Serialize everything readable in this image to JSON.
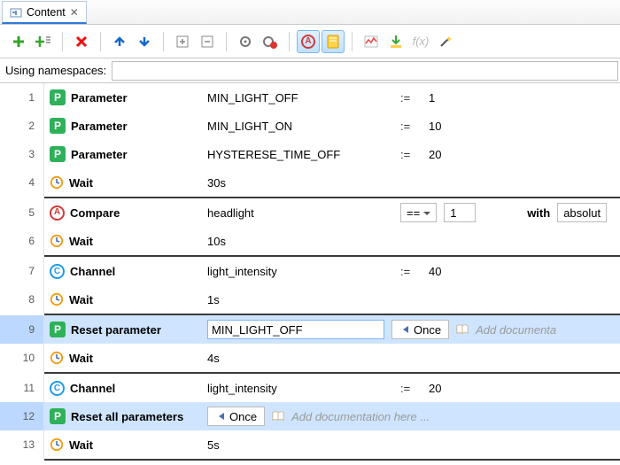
{
  "tab": {
    "title": "Content"
  },
  "namespaces": {
    "label": "Using namespaces:",
    "value": ""
  },
  "toolbar_icons": [
    "add",
    "add-sequence",
    "delete",
    "move-up",
    "move-down",
    "insert",
    "remove",
    "gear",
    "gear-red",
    "compare-a",
    "notebook",
    "analyze",
    "download",
    "fx",
    "wizard"
  ],
  "rows": [
    {
      "n": 1,
      "icon": "P",
      "cmd": "Parameter",
      "p1": "MIN_LIGHT_OFF",
      "assign": ":=",
      "val": "1"
    },
    {
      "n": 2,
      "icon": "P",
      "cmd": "Parameter",
      "p1": "MIN_LIGHT_ON",
      "assign": ":=",
      "val": "10"
    },
    {
      "n": 3,
      "icon": "P",
      "cmd": "Parameter",
      "p1": "HYSTERESE_TIME_OFF",
      "assign": ":=",
      "val": "20"
    },
    {
      "n": 4,
      "icon": "clock",
      "cmd": "Wait",
      "p1": "30s",
      "sep": true
    },
    {
      "n": 5,
      "icon": "A",
      "cmd": "Compare",
      "p1": "headlight",
      "op": "==",
      "val": "1",
      "with": "with",
      "with_val": "absolut"
    },
    {
      "n": 6,
      "icon": "clock",
      "cmd": "Wait",
      "p1": "10s",
      "sep": true
    },
    {
      "n": 7,
      "icon": "C",
      "cmd": "Channel",
      "p1": "light_intensity",
      "assign": ":=",
      "val": "40"
    },
    {
      "n": 8,
      "icon": "clock",
      "cmd": "Wait",
      "p1": "1s",
      "sep": true
    },
    {
      "n": 9,
      "icon": "P",
      "cmd": "Reset parameter",
      "p1": "MIN_LIGHT_OFF",
      "once": "Once",
      "doc": "Add documenta",
      "selected": true
    },
    {
      "n": 10,
      "icon": "clock",
      "cmd": "Wait",
      "p1": "4s",
      "sep": true
    },
    {
      "n": 11,
      "icon": "C",
      "cmd": "Channel",
      "p1": "light_intensity",
      "assign": ":=",
      "val": "20"
    },
    {
      "n": 12,
      "icon": "P",
      "cmd": "Reset all parameters",
      "once": "Once",
      "doc": "Add documentation here ...",
      "selected": true
    },
    {
      "n": 13,
      "icon": "clock",
      "cmd": "Wait",
      "p1": "5s",
      "sep": true
    }
  ],
  "colors": {
    "p_fill": "#2fb15a",
    "a_stroke": "#d23a3a",
    "c_stroke": "#1e9be8",
    "clock_stroke": "#f39c12",
    "selection": "#cfe5ff",
    "tab_active": "#2d7bd6"
  }
}
